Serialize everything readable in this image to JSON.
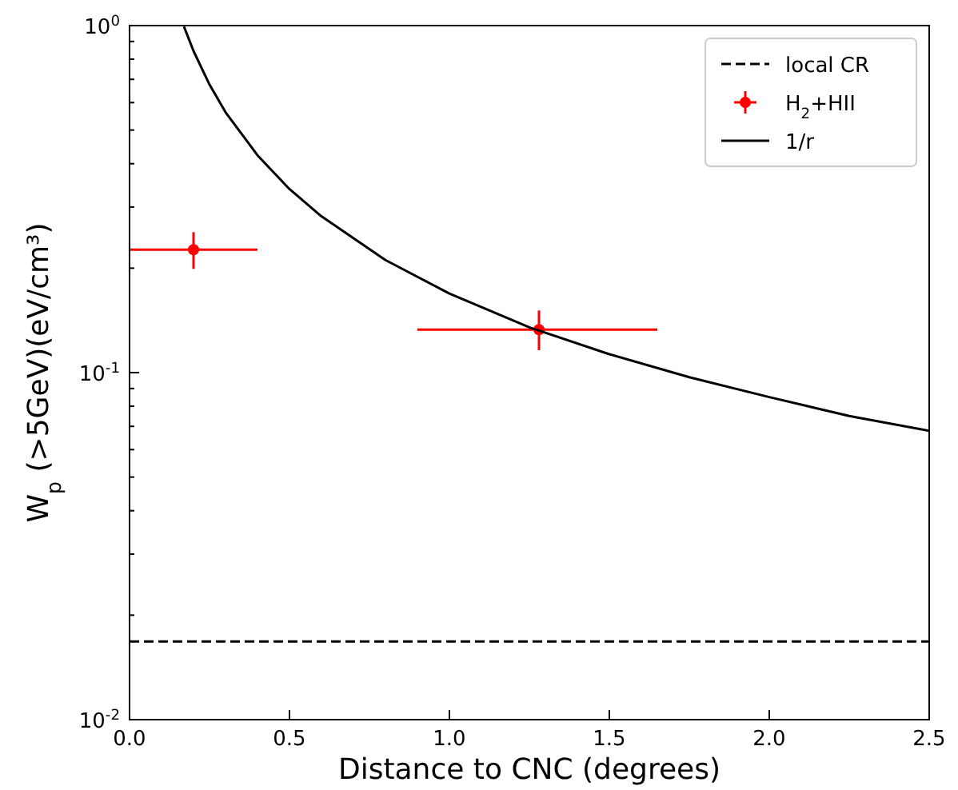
{
  "chart_data": {
    "type": "scatter",
    "xlabel": "Distance to CNC (degrees)",
    "ylabel": "W$_{p}$ (>5GeV)(eV/cm³)",
    "xlim": [
      0,
      2.5
    ],
    "xticks": [
      {
        "value": 0,
        "label": "0.0"
      },
      0.5,
      {
        "value": 1,
        "label": "1.0"
      },
      1.5,
      {
        "value": 2,
        "label": "2.0"
      },
      2.5
    ],
    "ylim": [
      0.01,
      1
    ],
    "log": true,
    "yticks": [
      {
        "value": 0.01,
        "label": "10$^{-2}$"
      },
      {
        "value": 0.02,
        "label": null
      },
      {
        "value": 0.03,
        "label": null
      },
      {
        "value": 0.04,
        "label": null
      },
      {
        "value": 0.05,
        "label": null
      },
      {
        "value": 0.06,
        "label": null
      },
      {
        "value": 0.07,
        "label": null
      },
      {
        "value": 0.08,
        "label": null
      },
      {
        "value": 0.09,
        "label": null
      },
      {
        "value": 0.1,
        "label": "10$^{-1}$"
      },
      {
        "value": 0.2,
        "label": null
      },
      {
        "value": 0.3,
        "label": null
      },
      {
        "value": 0.4,
        "label": null
      },
      {
        "value": 0.5,
        "label": null
      },
      {
        "value": 0.6,
        "label": null
      },
      {
        "value": 0.7,
        "label": null
      },
      {
        "value": 0.8,
        "label": null
      },
      {
        "value": 0.9,
        "label": null
      },
      {
        "value": 1,
        "label": "10$^{0}$"
      }
    ],
    "ref_lines": [
      {
        "axis": "y",
        "value": 0.0168,
        "label": "local CR",
        "color": "#000000",
        "line_style": "dashed"
      }
    ],
    "series": [
      {
        "name": "H$_{2}$+HII",
        "color": "#ff0000",
        "marker": "circle",
        "x": [
          0.2,
          1.28
        ],
        "values": [
          0.226,
          0.133
        ],
        "errors": [
          [
            0.199,
            0.254
          ],
          [
            0.116,
            0.151
          ]
        ],
        "xerrors": [
          0.2,
          [
            0.9,
            1.65
          ]
        ]
      },
      {
        "name": "1/r",
        "type": "line",
        "color": "#000000",
        "line_style": "solid",
        "x": [
          0.17,
          0.2,
          0.25,
          0.3,
          0.4,
          0.5,
          0.6,
          0.8,
          1.0,
          1.25,
          1.5,
          1.75,
          2.0,
          2.25,
          2.5
        ],
        "values": [
          0.994,
          0.845,
          0.676,
          0.563,
          0.423,
          0.338,
          0.282,
          0.211,
          0.169,
          0.135,
          0.113,
          0.097,
          0.085,
          0.075,
          0.068
        ]
      }
    ],
    "legend": "top right",
    "grid": false
  }
}
